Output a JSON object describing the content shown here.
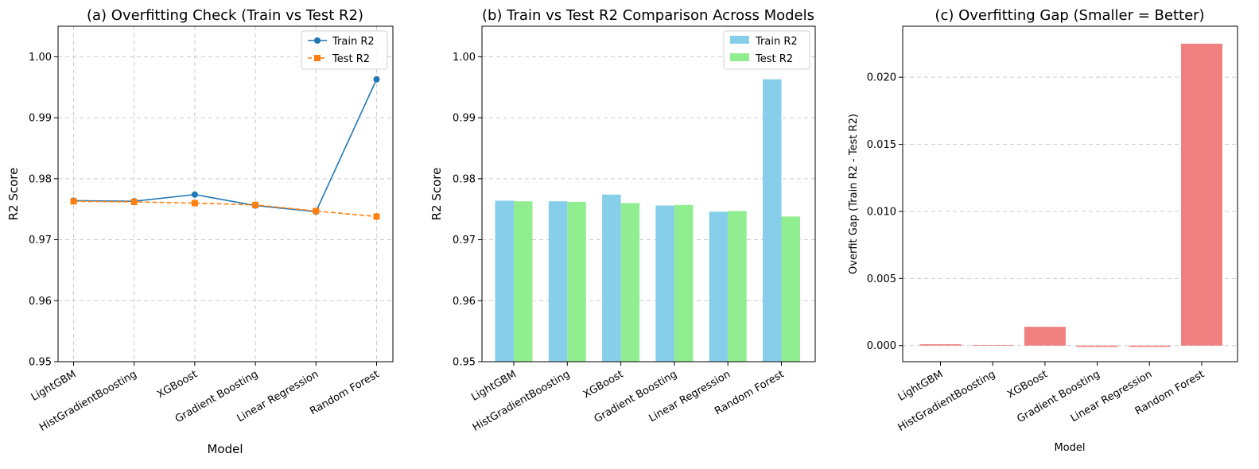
{
  "chart_data": [
    {
      "type": "line",
      "title": "(a) Overfitting Check (Train vs Test R2)",
      "xlabel": "Model",
      "ylabel": "R2 Score",
      "categories": [
        "LightGBM",
        "HistGradientBoosting",
        "XGBoost",
        "Gradient Boosting",
        "Linear Regression",
        "Random Forest"
      ],
      "series": [
        {
          "name": "Train R2",
          "values": [
            0.9764,
            0.9763,
            0.9774,
            0.9756,
            0.9746,
            0.9963
          ],
          "color": "#1f77b4",
          "marker": "circle",
          "linestyle": "solid"
        },
        {
          "name": "Test R2",
          "values": [
            0.9763,
            0.9762,
            0.976,
            0.9757,
            0.9747,
            0.9738
          ],
          "color": "#ff7f0e",
          "marker": "square",
          "linestyle": "dashed"
        }
      ],
      "ylim": [
        0.95,
        1.005
      ],
      "yticks": [
        0.95,
        0.96,
        0.97,
        0.98,
        0.99,
        1.0
      ],
      "ytick_labels": [
        "0.95",
        "0.96",
        "0.97",
        "0.98",
        "0.99",
        "1.00"
      ],
      "grid": "both",
      "legend": "top-right"
    },
    {
      "type": "bar",
      "title": "(b) Train vs Test R2 Comparison Across Models",
      "xlabel": "",
      "ylabel": "R2 Score",
      "categories": [
        "LightGBM",
        "HistGradientBoosting",
        "XGBoost",
        "Gradient Boosting",
        "Linear Regression",
        "Random Forest"
      ],
      "series": [
        {
          "name": "Train R2",
          "values": [
            0.9764,
            0.9763,
            0.9774,
            0.9756,
            0.9746,
            0.9963
          ],
          "color": "#87ceeb"
        },
        {
          "name": "Test R2",
          "values": [
            0.9763,
            0.9762,
            0.976,
            0.9757,
            0.9747,
            0.9738
          ],
          "color": "#90ee90"
        }
      ],
      "ylim": [
        0.95,
        1.005
      ],
      "yticks": [
        0.95,
        0.96,
        0.97,
        0.98,
        0.99,
        1.0
      ],
      "ytick_labels": [
        "0.95",
        "0.96",
        "0.97",
        "0.98",
        "0.99",
        "1.00"
      ],
      "grid": "y",
      "legend": "top-right"
    },
    {
      "type": "bar",
      "title": "(c) Overfitting Gap (Smaller = Better)",
      "xlabel": "Model",
      "ylabel": "Overfit Gap (Train R2 - Test R2)",
      "categories": [
        "LightGBM",
        "HistGradientBoosting",
        "XGBoost",
        "Gradient Boosting",
        "Linear Regression",
        "Random Forest"
      ],
      "series": [
        {
          "values": [
            0.0001,
            5e-05,
            0.0014,
            -0.0001,
            -0.0001,
            0.0225
          ],
          "color": "#f08080"
        }
      ],
      "ylim": [
        -0.0012,
        0.0238
      ],
      "yticks": [
        0.0,
        0.005,
        0.01,
        0.015,
        0.02
      ],
      "ytick_labels": [
        "0.000",
        "0.005",
        "0.010",
        "0.015",
        "0.020"
      ],
      "grid": "y",
      "legend": "none"
    }
  ]
}
